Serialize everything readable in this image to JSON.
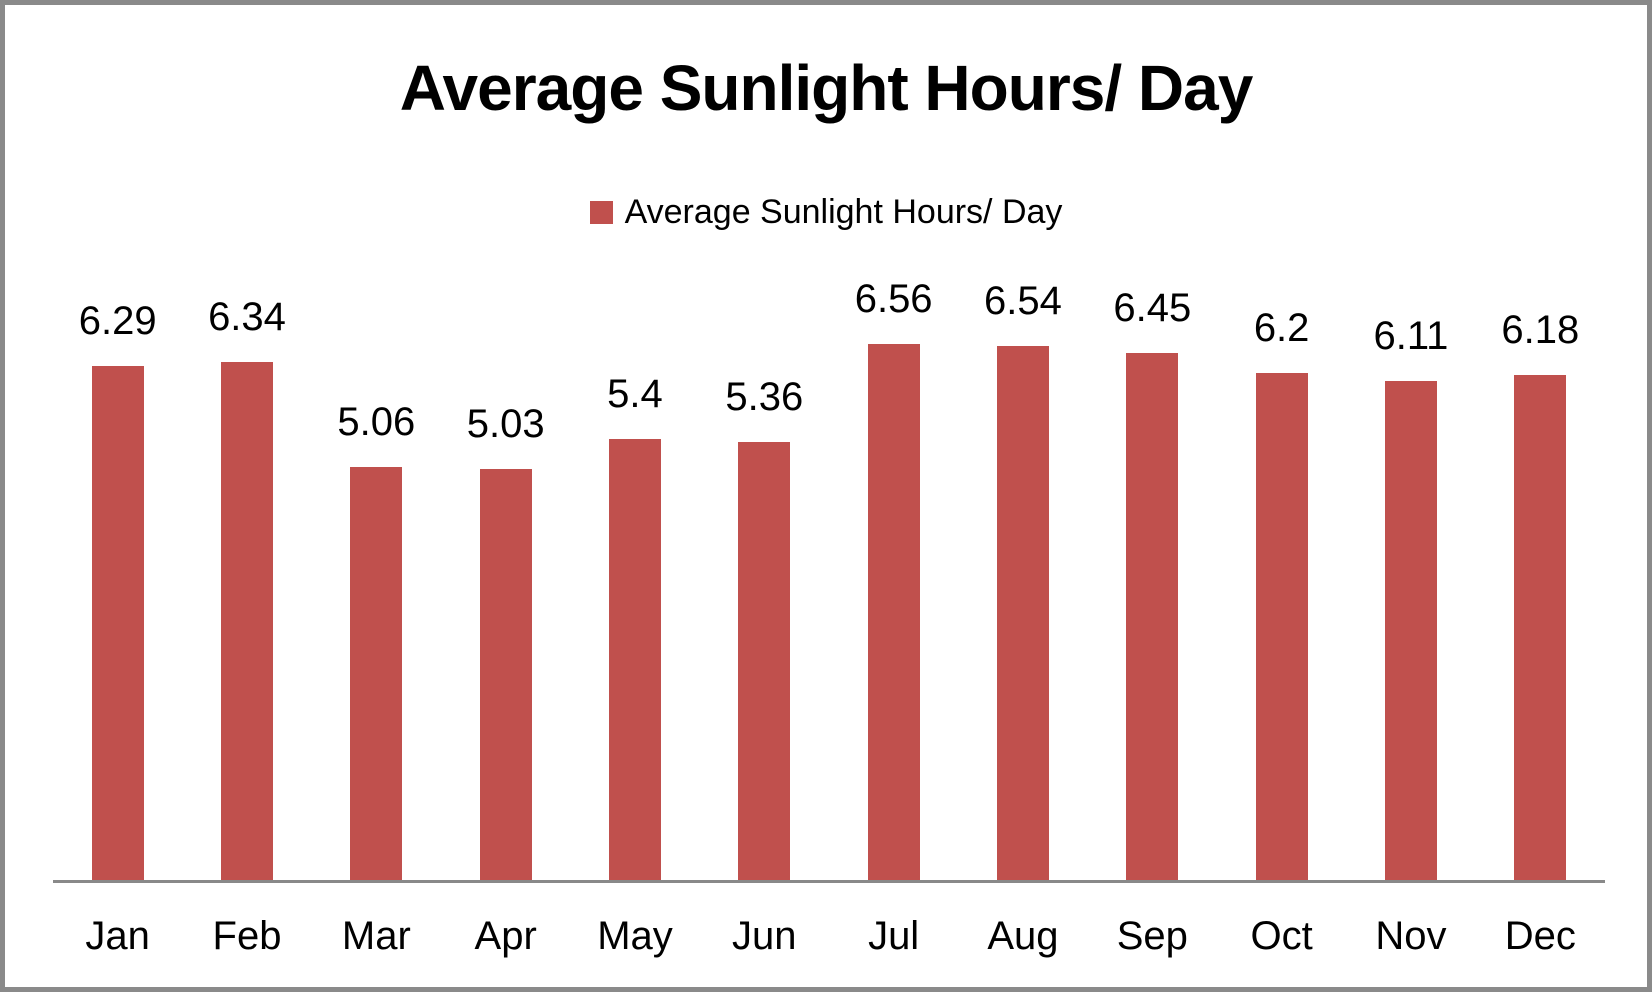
{
  "chart_data": {
    "type": "bar",
    "title": "Average Sunlight Hours/ Day",
    "categories": [
      "Jan",
      "Feb",
      "Mar",
      "Apr",
      "May",
      "Jun",
      "Jul",
      "Aug",
      "Sep",
      "Oct",
      "Nov",
      "Dec"
    ],
    "series": [
      {
        "name": "Average Sunlight Hours/ Day",
        "values": [
          6.29,
          6.34,
          5.06,
          5.03,
          5.4,
          5.36,
          6.56,
          6.54,
          6.45,
          6.2,
          6.11,
          6.18
        ]
      }
    ],
    "value_labels": [
      "6.29",
      "6.34",
      "5.06",
      "5.03",
      "5.4",
      "5.36",
      "6.56",
      "6.54",
      "6.45",
      "6.2",
      "6.11",
      "6.18"
    ],
    "xlabel": "",
    "ylabel": "",
    "data_labels": true,
    "grid": false,
    "y_axis_visible": false,
    "x_axis_line_visible": true,
    "legend_position": "top-center",
    "bar_color": "#C0504D",
    "axis_line_color": "#898989",
    "frame_border_color": "#8A8A8A",
    "text_color": "#000000",
    "background_color": "#FFFFFF"
  }
}
